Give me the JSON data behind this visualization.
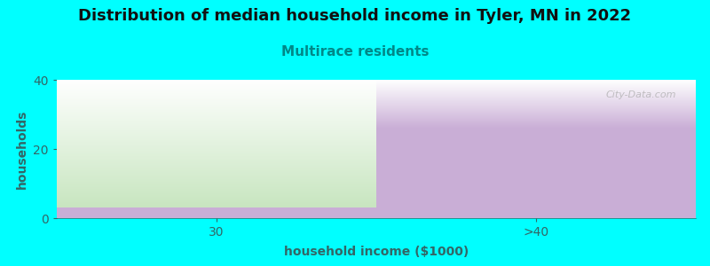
{
  "title": "Distribution of median household income in Tyler, MN in 2022",
  "subtitle": "Multirace residents",
  "xlabel": "household income ($1000)",
  "ylabel": "households",
  "categories": [
    "30",
    ">40"
  ],
  "values": [
    3,
    26
  ],
  "ylim": [
    0,
    40
  ],
  "yticks": [
    0,
    20,
    40
  ],
  "bar_colors": [
    "#c8e6c0",
    "#c9aed6"
  ],
  "background_color": "#00ffff",
  "plot_bg_color": "#ffffff",
  "title_color": "#111111",
  "subtitle_color": "#008888",
  "axis_color": "#336666",
  "watermark": "City-Data.com",
  "title_fontsize": 13,
  "subtitle_fontsize": 11,
  "label_fontsize": 10,
  "tick_fontsize": 10
}
